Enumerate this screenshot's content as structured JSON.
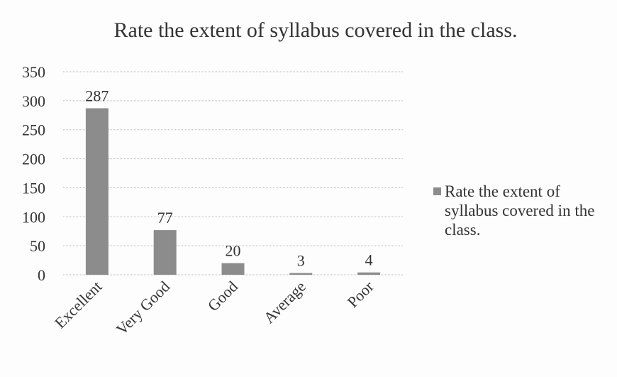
{
  "chart_data": {
    "type": "bar",
    "title": "Rate the extent of syllabus covered in the class.",
    "categories": [
      "Excellent",
      "Very Good",
      "Good",
      "Average",
      "Poor"
    ],
    "series": [
      {
        "name": "Rate the extent of syllabus covered in the class.",
        "color": "#8c8c8c",
        "values": [
          287,
          77,
          20,
          3,
          4
        ]
      }
    ],
    "ylim": [
      0,
      350
    ],
    "yticks": [
      0,
      50,
      100,
      150,
      200,
      250,
      300,
      350
    ],
    "grid": true,
    "legend": "right"
  }
}
